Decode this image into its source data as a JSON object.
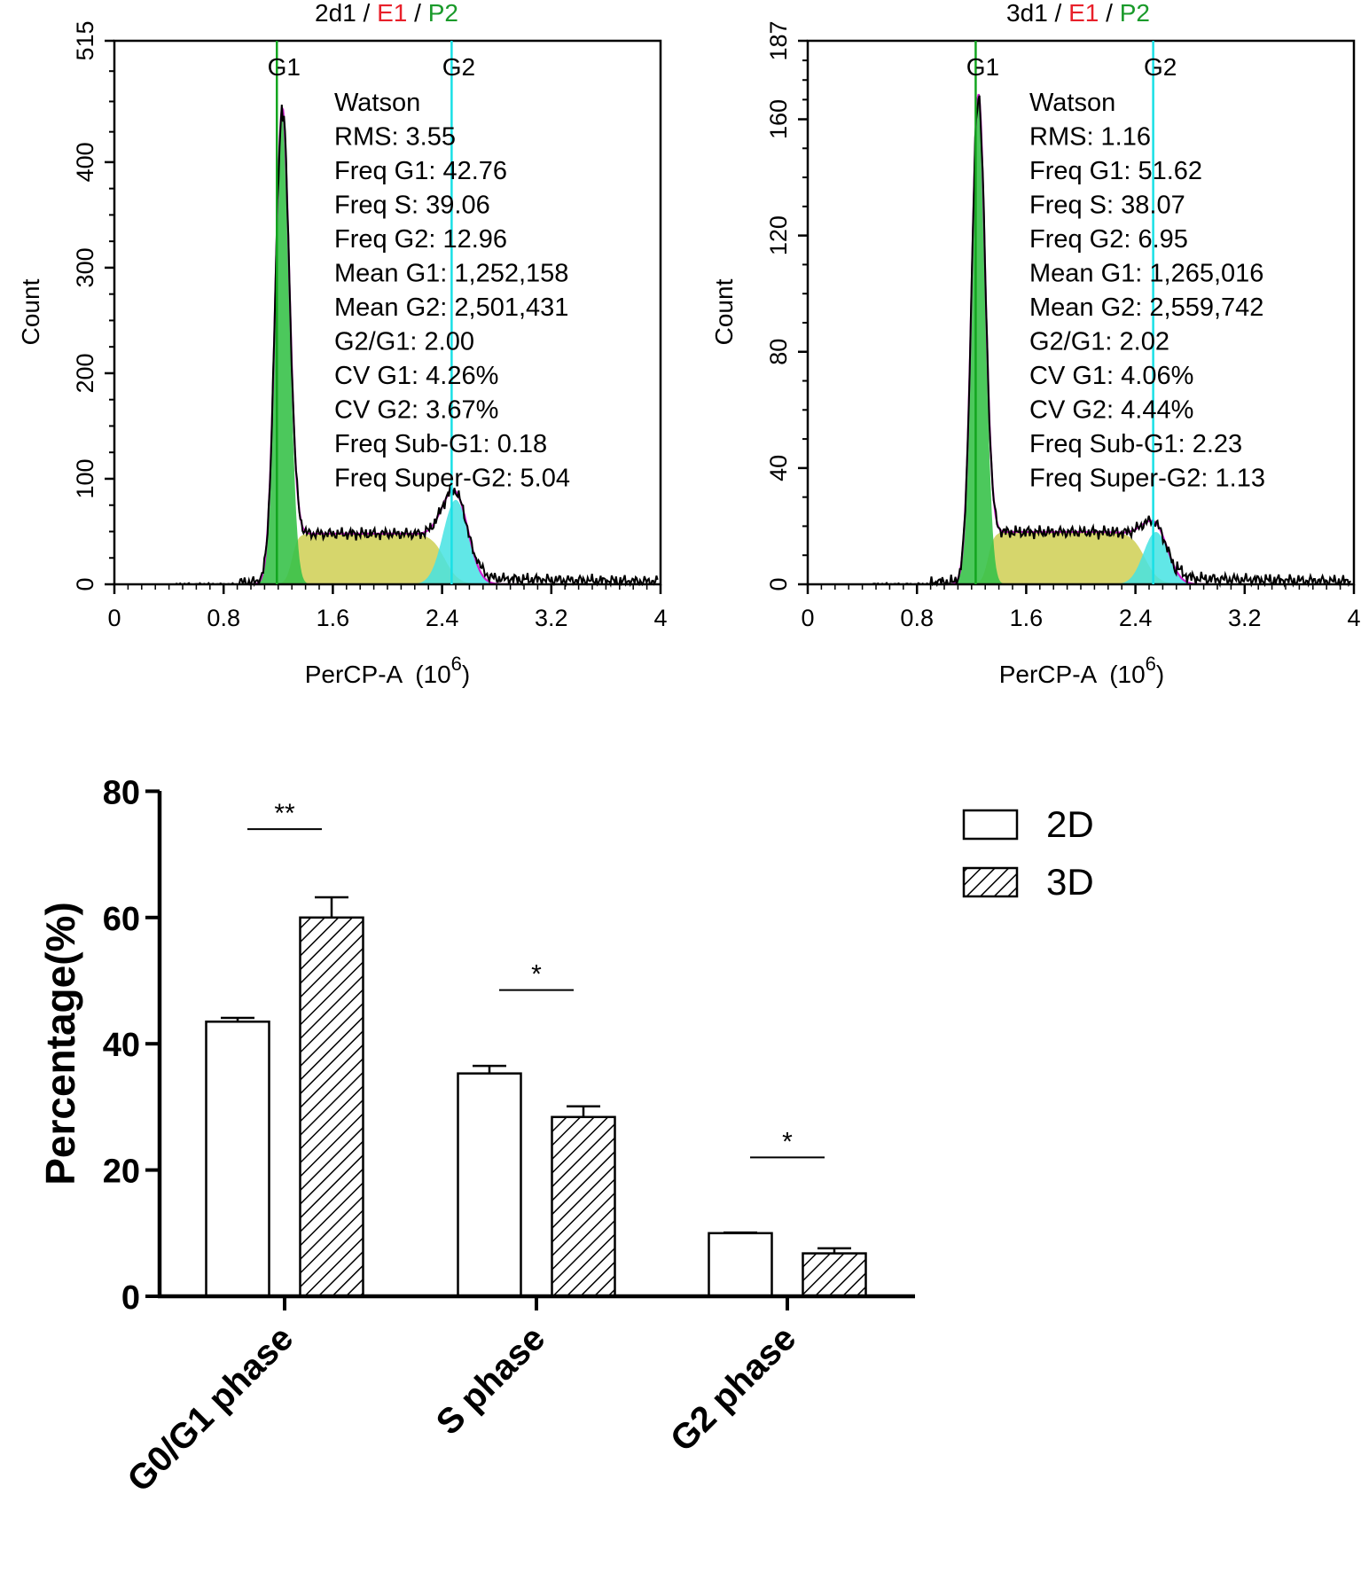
{
  "colors": {
    "axis": "#000000",
    "red": "#e8202a",
    "green": "#1a9a2a",
    "g1_fill": "#39c24a",
    "g1_line": "#13a51f",
    "g2_fill": "#45e3e3",
    "g2_line": "#19e0e6",
    "s_fill": "#cfcf52",
    "envelope": "#d21fd2",
    "trace": "#000000",
    "hatch": "#000000"
  },
  "chart_data": [
    {
      "type": "area",
      "id": "histogram-2d",
      "title": {
        "part1": "2d1 / ",
        "part2": "E1",
        "part3": " / ",
        "part4": "P2"
      },
      "xlabel": "PerCP-A",
      "xlabel_unit_base": "(10",
      "xlabel_unit_exp": "6",
      "xlabel_unit_close": ")",
      "ylabel": "Count",
      "xlim": [
        0,
        4
      ],
      "ylim": [
        0,
        515
      ],
      "xticks": [
        "0",
        "0.8",
        "1.6",
        "2.4",
        "3.2",
        "4"
      ],
      "yticks": [
        "0",
        "100",
        "200",
        "300",
        "400",
        "515"
      ],
      "ytick_values": [
        0,
        100,
        200,
        300,
        400,
        515
      ],
      "marker_g1": {
        "label": "G1",
        "x": 1.19
      },
      "marker_g2": {
        "label": "G2",
        "x": 2.47
      },
      "g1_peak": {
        "center": 1.23,
        "sd": 0.052,
        "height": 450
      },
      "g2_peak": {
        "center": 2.5,
        "sd": 0.092,
        "height": 80
      },
      "s_level": 48,
      "stats": [
        "Watson",
        "RMS: 3.55",
        "Freq G1: 42.76",
        "Freq S: 39.06",
        "Freq G2: 12.96",
        "Mean G1: 1,252,158",
        "Mean G2: 2,501,431",
        "G2/G1: 2.00",
        "CV G1: 4.26%",
        "CV G2: 3.67%",
        "Freq Sub-G1: 0.18",
        "Freq Super-G2: 5.04"
      ]
    },
    {
      "type": "area",
      "id": "histogram-3d",
      "title": {
        "part1": "3d1 / ",
        "part2": "E1",
        "part3": " / ",
        "part4": "P2"
      },
      "xlabel": "PerCP-A",
      "xlabel_unit_base": "(10",
      "xlabel_unit_exp": "6",
      "xlabel_unit_close": ")",
      "ylabel": "Count",
      "xlim": [
        0,
        4
      ],
      "ylim": [
        0,
        187
      ],
      "xticks": [
        "0",
        "0.8",
        "1.6",
        "2.4",
        "3.2",
        "4"
      ],
      "yticks": [
        "0",
        "40",
        "80",
        "120",
        "160",
        "187"
      ],
      "ytick_values": [
        0,
        40,
        80,
        120,
        160,
        187
      ],
      "marker_g1": {
        "label": "G1",
        "x": 1.23
      },
      "marker_g2": {
        "label": "G2",
        "x": 2.53
      },
      "g1_peak": {
        "center": 1.25,
        "sd": 0.05,
        "height": 168
      },
      "g2_peak": {
        "center": 2.55,
        "sd": 0.09,
        "height": 18
      },
      "s_level": 18,
      "stats": [
        "Watson",
        "RMS: 1.16",
        "Freq G1: 51.62",
        "Freq S: 38.07",
        "Freq G2: 6.95",
        "Mean G1: 1,265,016",
        "Mean G2: 2,559,742",
        "G2/G1: 2.02",
        "CV G1: 4.06%",
        "CV G2: 4.44%",
        "Freq Sub-G1: 2.23",
        "Freq Super-G2: 1.13"
      ]
    },
    {
      "type": "bar",
      "id": "phase-bar-chart",
      "categories": [
        "G0/G1 phase",
        "S phase",
        "G2 phase"
      ],
      "series": [
        {
          "name": "2D",
          "pattern": "open",
          "values": [
            43.5,
            35.3,
            10.0
          ],
          "errors": [
            0.6,
            1.2,
            0.1
          ]
        },
        {
          "name": "3D",
          "pattern": "hatched",
          "values": [
            60.0,
            28.4,
            6.8
          ],
          "errors": [
            3.2,
            1.7,
            0.8
          ]
        }
      ],
      "significance": [
        "**",
        "*",
        "*"
      ],
      "significance_y": [
        74,
        48.5,
        22
      ],
      "ylabel": "Percentage(%)",
      "ylim": [
        0,
        80
      ],
      "yticks": [
        "0",
        "20",
        "40",
        "60",
        "80"
      ],
      "ytick_values": [
        0,
        20,
        40,
        60,
        80
      ],
      "legend_position": "top-right"
    }
  ]
}
